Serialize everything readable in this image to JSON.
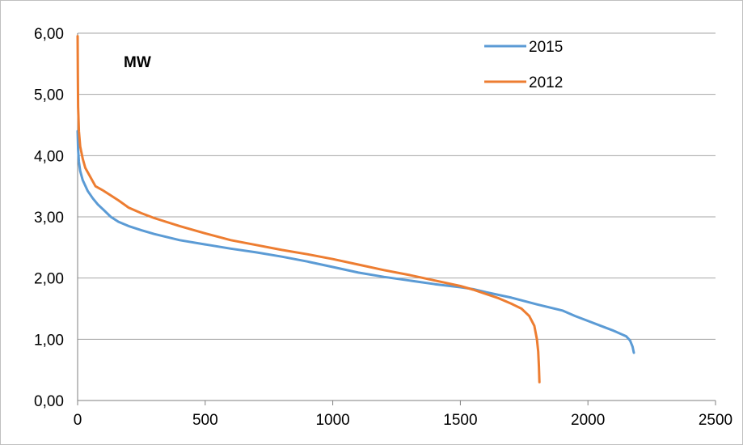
{
  "chart_data": {
    "type": "line",
    "title": "",
    "xlabel": "",
    "ylabel": "",
    "unit_label": "MW",
    "xlim": [
      0,
      2500
    ],
    "ylim": [
      0,
      6
    ],
    "xticks": [
      "0",
      "500",
      "1000",
      "1500",
      "2000",
      "2500"
    ],
    "yticks": [
      "0,00",
      "1,00",
      "2,00",
      "3,00",
      "4,00",
      "5,00",
      "6,00"
    ],
    "grid": true,
    "legend_position": "top-right",
    "series": [
      {
        "name": "2015",
        "color": "#5b9bd5",
        "x": [
          0,
          2,
          5,
          10,
          20,
          40,
          60,
          80,
          100,
          130,
          160,
          200,
          250,
          300,
          400,
          500,
          600,
          700,
          800,
          900,
          1000,
          1100,
          1200,
          1300,
          1400,
          1500,
          1550,
          1600,
          1700,
          1800,
          1900,
          1950,
          2000,
          2050,
          2100,
          2150,
          2165,
          2175,
          2180
        ],
        "y": [
          4.4,
          4.1,
          3.9,
          3.75,
          3.6,
          3.42,
          3.3,
          3.2,
          3.12,
          3.0,
          2.92,
          2.85,
          2.78,
          2.72,
          2.62,
          2.55,
          2.48,
          2.42,
          2.35,
          2.27,
          2.18,
          2.09,
          2.02,
          1.96,
          1.9,
          1.85,
          1.82,
          1.77,
          1.68,
          1.57,
          1.47,
          1.38,
          1.3,
          1.22,
          1.14,
          1.05,
          0.98,
          0.88,
          0.78
        ]
      },
      {
        "name": "2012",
        "color": "#ed7d31",
        "x": [
          0,
          1,
          2,
          5,
          10,
          20,
          30,
          50,
          70,
          100,
          130,
          160,
          200,
          250,
          300,
          400,
          500,
          600,
          700,
          800,
          900,
          1000,
          1100,
          1200,
          1300,
          1400,
          1500,
          1550,
          1600,
          1650,
          1700,
          1740,
          1770,
          1790,
          1800,
          1805,
          1808,
          1810
        ],
        "y": [
          5.95,
          5.3,
          4.8,
          4.4,
          4.15,
          3.95,
          3.8,
          3.65,
          3.5,
          3.43,
          3.35,
          3.27,
          3.15,
          3.06,
          2.98,
          2.85,
          2.73,
          2.62,
          2.54,
          2.46,
          2.39,
          2.31,
          2.22,
          2.13,
          2.05,
          1.96,
          1.87,
          1.81,
          1.74,
          1.67,
          1.58,
          1.5,
          1.38,
          1.22,
          1.0,
          0.8,
          0.55,
          0.3
        ]
      }
    ]
  }
}
